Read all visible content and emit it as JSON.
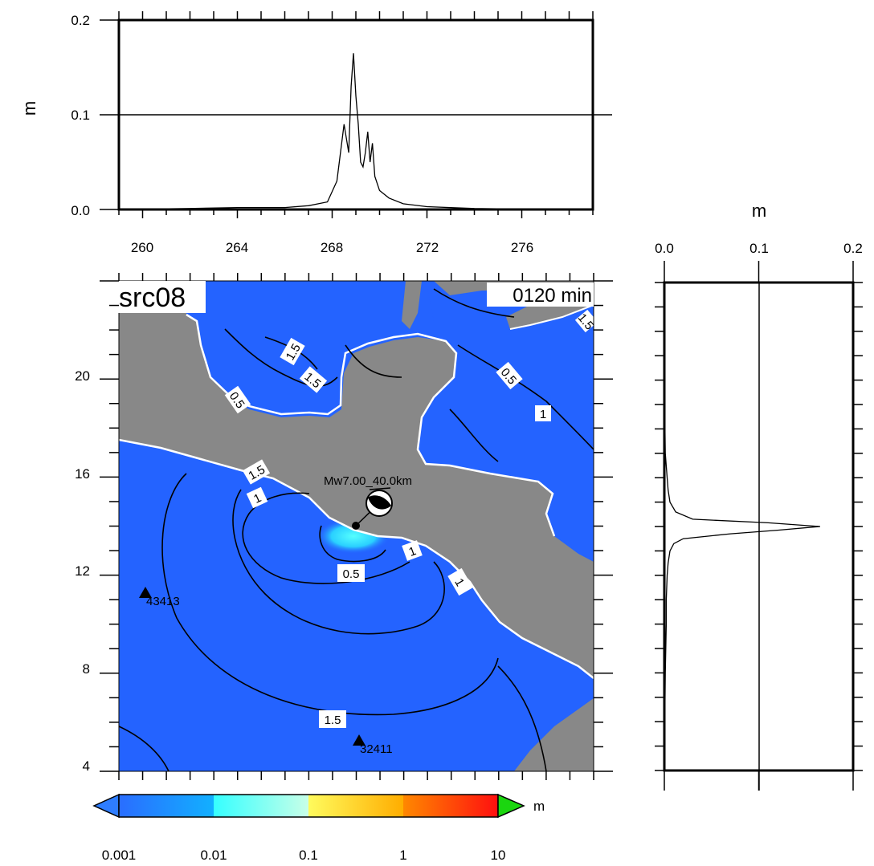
{
  "map": {
    "source_label": "src08",
    "time_label": "0120 min",
    "event_label": "Mw7.00_40.0km",
    "stations": [
      {
        "name": "43413",
        "lon": 260,
        "lat": 11
      },
      {
        "name": "32411",
        "lon": 269.9,
        "lat": 5
      }
    ],
    "contour_labels": [
      "1.5",
      "1.5",
      "0.5",
      "1",
      "0.5",
      "1",
      "1.5",
      "1",
      "0.5",
      "1",
      "1.5",
      "1.5"
    ],
    "colors": {
      "ocean": "#2463ff",
      "land": "#888888",
      "coast": "#ffffff",
      "contour": "#000000"
    }
  },
  "chart_data": [
    {
      "type": "line",
      "name": "top-profile",
      "ylabel": "m",
      "xticks": [
        "260",
        "264",
        "268",
        "272",
        "276"
      ],
      "yticks": [
        "0.0",
        "0.1",
        "0.2"
      ],
      "xlim": [
        259,
        279
      ],
      "ylim": [
        0,
        0.2
      ],
      "x": [
        259,
        262,
        264,
        266,
        267,
        267.8,
        268.2,
        268.5,
        268.7,
        268.8,
        268.9,
        269.0,
        269.1,
        269.2,
        269.3,
        269.4,
        269.5,
        269.6,
        269.7,
        269.8,
        270.0,
        270.4,
        271,
        272,
        274,
        277
      ],
      "y": [
        0,
        0.001,
        0.002,
        0.002,
        0.004,
        0.008,
        0.03,
        0.09,
        0.06,
        0.13,
        0.165,
        0.12,
        0.09,
        0.05,
        0.045,
        0.06,
        0.082,
        0.05,
        0.07,
        0.035,
        0.02,
        0.012,
        0.006,
        0.003,
        0.001,
        0
      ]
    },
    {
      "type": "line",
      "name": "side-profile",
      "xlabel": "m",
      "xticks": [
        "0.0",
        "0.1",
        "0.2"
      ],
      "xlim": [
        0,
        0.2
      ],
      "ylim": [
        4,
        24
      ],
      "lat": [
        4,
        8,
        10,
        11,
        12,
        12.5,
        13,
        13.3,
        13.5,
        13.7,
        13.85,
        14.0,
        14.15,
        14.3,
        14.6,
        15,
        15.5,
        16,
        17,
        20,
        24
      ],
      "value": [
        0,
        0.001,
        0.002,
        0.002,
        0.003,
        0.004,
        0.006,
        0.01,
        0.02,
        0.07,
        0.12,
        0.165,
        0.11,
        0.03,
        0.012,
        0.006,
        0.004,
        0.003,
        0.001,
        0,
        0
      ]
    },
    {
      "type": "colorbar",
      "name": "colorbar",
      "unit": "m",
      "tick_labels": [
        "0.001",
        "0.01",
        "0.1",
        "1",
        "10"
      ],
      "colors": [
        "#2e7dff",
        "#11b6ff",
        "#35ffff",
        "#fff86a",
        "#ffb700",
        "#ff5a00",
        "#ff1a12",
        "#1bd60f",
        "#3e8cff"
      ]
    }
  ]
}
